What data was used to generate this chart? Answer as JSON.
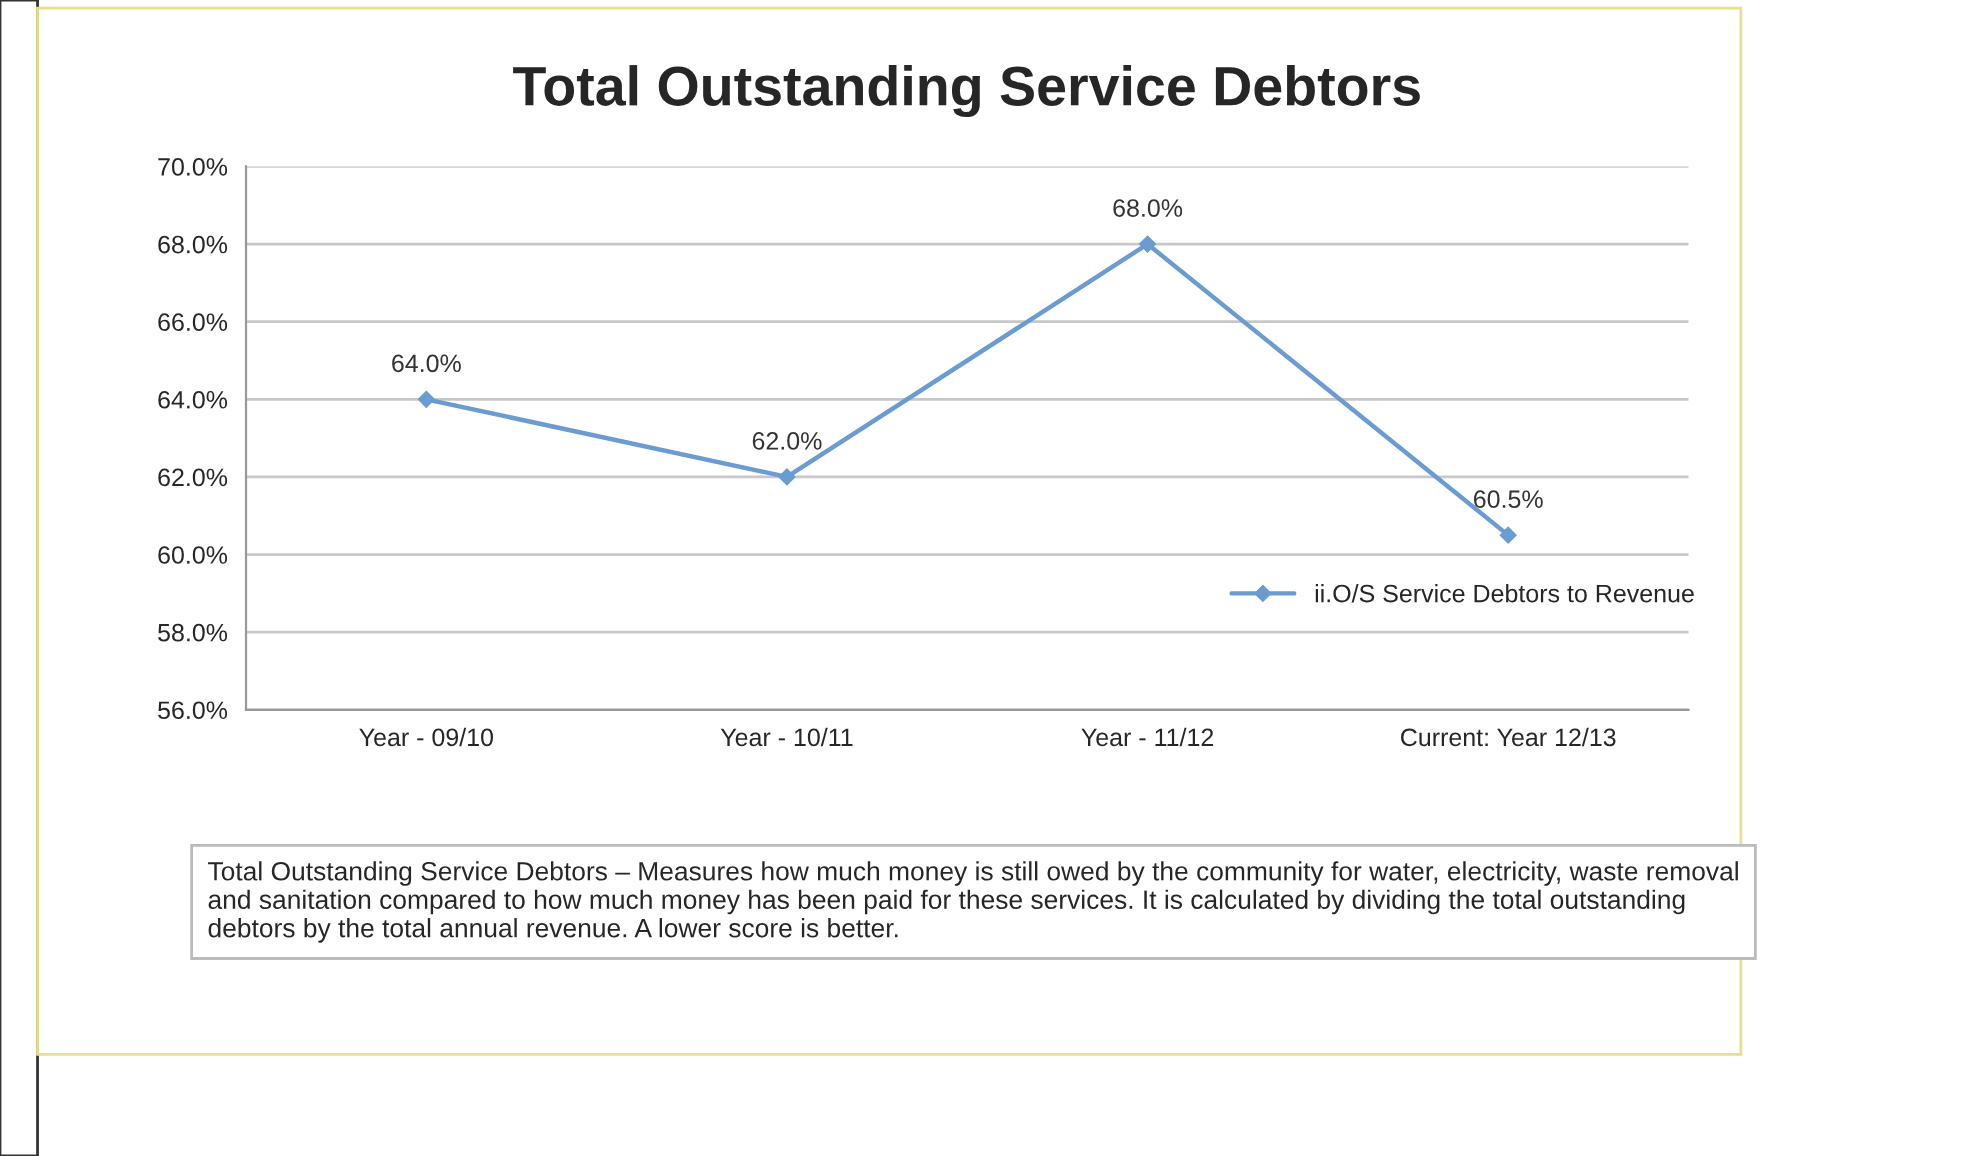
{
  "chart_data": {
    "type": "line",
    "title": "Total Outstanding Service Debtors",
    "categories": [
      "Year - 09/10",
      "Year - 10/11",
      "Year - 11/12",
      "Current: Year 12/13"
    ],
    "series": [
      {
        "name": "ii.O/S Service Debtors to Revenue",
        "color": "#6a9bd1",
        "values": [
          64.0,
          62.0,
          68.0,
          60.5
        ],
        "value_labels": [
          "64.0%",
          "62.0%",
          "68.0%",
          "60.5%"
        ]
      }
    ],
    "ylim": [
      56,
      70
    ],
    "yticks": [
      {
        "value": 56,
        "label": "56.0%"
      },
      {
        "value": 58,
        "label": "58.0%"
      },
      {
        "value": 60,
        "label": "60.0%"
      },
      {
        "value": 62,
        "label": "62.0%"
      },
      {
        "value": 64,
        "label": "64.0%"
      },
      {
        "value": 66,
        "label": "66.0%"
      },
      {
        "value": 68,
        "label": "68.0%"
      },
      {
        "value": 70,
        "label": "70.0%"
      }
    ],
    "grid": "y",
    "legend": "right",
    "marker": "diamond",
    "line_style": "solid",
    "annotations": [
      "Total Outstanding Service Debtors – Measures how much money is still owed by the community for water, electricity, waste removal and sanitation compared to how much money has been paid for these services. It is calculated by dividing the total outstanding debtors by the total annual revenue. A lower score is better."
    ]
  }
}
